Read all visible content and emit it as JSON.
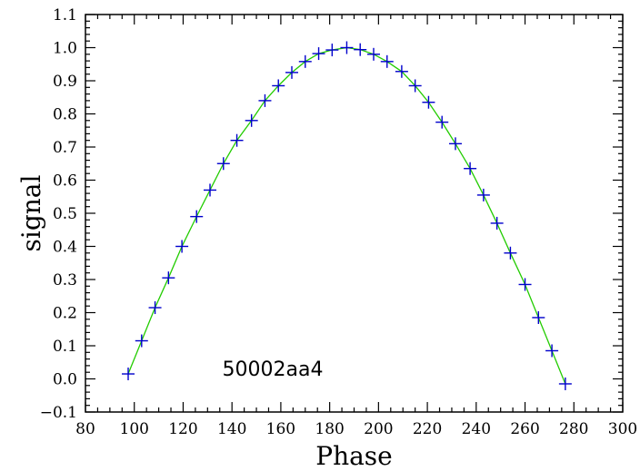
{
  "chart_data": {
    "type": "scatter",
    "title": "",
    "xlabel": "Phase",
    "ylabel": "signal",
    "xlim": [
      80,
      300
    ],
    "ylim": [
      -0.1,
      1.1
    ],
    "x_ticks": [
      80,
      100,
      120,
      140,
      160,
      180,
      200,
      220,
      240,
      260,
      280,
      300
    ],
    "y_ticks": [
      -0.1,
      0.0,
      0.1,
      0.2,
      0.3,
      0.4,
      0.5,
      0.6,
      0.7,
      0.8,
      0.9,
      1.0,
      1.1
    ],
    "x_tick_labels": [
      "80",
      "100",
      "120",
      "140",
      "160",
      "180",
      "200",
      "220",
      "240",
      "260",
      "280",
      "300"
    ],
    "y_tick_labels": [
      "−0.1",
      "0.0",
      "0.1",
      "0.2",
      "0.3",
      "0.4",
      "0.5",
      "0.6",
      "0.7",
      "0.8",
      "0.9",
      "1.0",
      "1.1"
    ],
    "annotation": "50002aa4",
    "grid": false,
    "colors": {
      "markers": "#0000cc",
      "fit_line": "#22cc00"
    },
    "series": [
      {
        "marker": "plus",
        "x": [
          97.5,
          103.0,
          108.5,
          114.0,
          119.5,
          125.5,
          131.0,
          136.5,
          142.0,
          148.0,
          153.5,
          159.0,
          164.5,
          170.0,
          175.5,
          181.0,
          187.0,
          192.5,
          198.0,
          203.5,
          209.5,
          215.0,
          220.5,
          226.0,
          231.5,
          237.5,
          243.0,
          248.5,
          254.0,
          260.0,
          265.5,
          271.0,
          276.5
        ],
        "y": [
          0.015,
          0.115,
          0.215,
          0.305,
          0.4,
          0.49,
          0.57,
          0.65,
          0.72,
          0.78,
          0.84,
          0.885,
          0.925,
          0.958,
          0.982,
          0.993,
          1.0,
          0.994,
          0.98,
          0.958,
          0.928,
          0.885,
          0.835,
          0.775,
          0.71,
          0.635,
          0.555,
          0.47,
          0.38,
          0.285,
          0.185,
          0.085,
          -0.015
        ]
      },
      {
        "marker": "line",
        "x": [
          97.5,
          103.0,
          108.5,
          114.0,
          119.5,
          125.5,
          131.0,
          136.5,
          142.0,
          148.0,
          153.5,
          159.0,
          164.5,
          170.0,
          175.5,
          181.0,
          187.0,
          192.5,
          198.0,
          203.5,
          209.5,
          215.0,
          220.5,
          226.0,
          231.5,
          237.5,
          243.0,
          248.5,
          254.0,
          260.0,
          265.5,
          271.0,
          276.5
        ],
        "y": [
          0.015,
          0.115,
          0.215,
          0.305,
          0.4,
          0.49,
          0.57,
          0.65,
          0.72,
          0.78,
          0.84,
          0.885,
          0.925,
          0.958,
          0.982,
          0.993,
          1.0,
          0.994,
          0.98,
          0.958,
          0.928,
          0.885,
          0.835,
          0.775,
          0.71,
          0.635,
          0.555,
          0.47,
          0.38,
          0.285,
          0.185,
          0.085,
          -0.015
        ]
      }
    ]
  }
}
